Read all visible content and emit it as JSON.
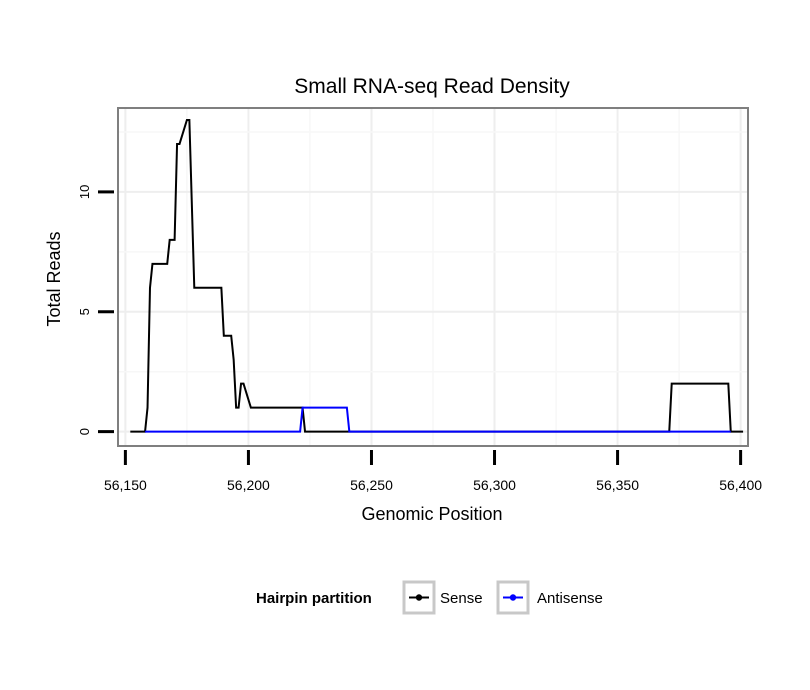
{
  "chart_data": {
    "type": "line",
    "title": "Small RNA-seq Read Density",
    "xlabel": "Genomic Position",
    "ylabel": "Total Reads",
    "xlim": [
      56147,
      56403
    ],
    "ylim": [
      -0.6,
      13.5
    ],
    "x_ticks": [
      56150,
      56200,
      56250,
      56300,
      56350,
      56400
    ],
    "x_tick_labels": [
      "56,150",
      "56,200",
      "56,250",
      "56,300",
      "56,350",
      "56,400"
    ],
    "y_ticks": [
      0,
      5,
      10
    ],
    "y_tick_labels": [
      "0",
      "5",
      "10"
    ],
    "grid": true,
    "legend": {
      "title": "Hairpin partition",
      "position": "bottom",
      "entries": [
        "Sense",
        "Antisense"
      ]
    },
    "series": [
      {
        "name": "Sense",
        "color": "#000000",
        "x": [
          56152,
          56158,
          56159,
          56160,
          56161,
          56167,
          56168,
          56170,
          56171,
          56172,
          56175,
          56176,
          56178,
          56179,
          56189,
          56190,
          56193,
          56194,
          56195,
          56196,
          56197,
          56198,
          56201,
          56202,
          56222,
          56223,
          56371,
          56372,
          56395,
          56396,
          56401
        ],
        "values": [
          0,
          0,
          1,
          6,
          7,
          7,
          8,
          8,
          12,
          12,
          13,
          13,
          6,
          6,
          6,
          4,
          4,
          3,
          1,
          1,
          2,
          2,
          1,
          1,
          1,
          0,
          0,
          2,
          2,
          0,
          0
        ]
      },
      {
        "name": "Antisense",
        "color": "#0000ff",
        "x": [
          56158,
          56221,
          56222,
          56240,
          56241,
          56396
        ],
        "values": [
          0,
          0,
          1,
          1,
          0,
          0
        ]
      }
    ]
  }
}
